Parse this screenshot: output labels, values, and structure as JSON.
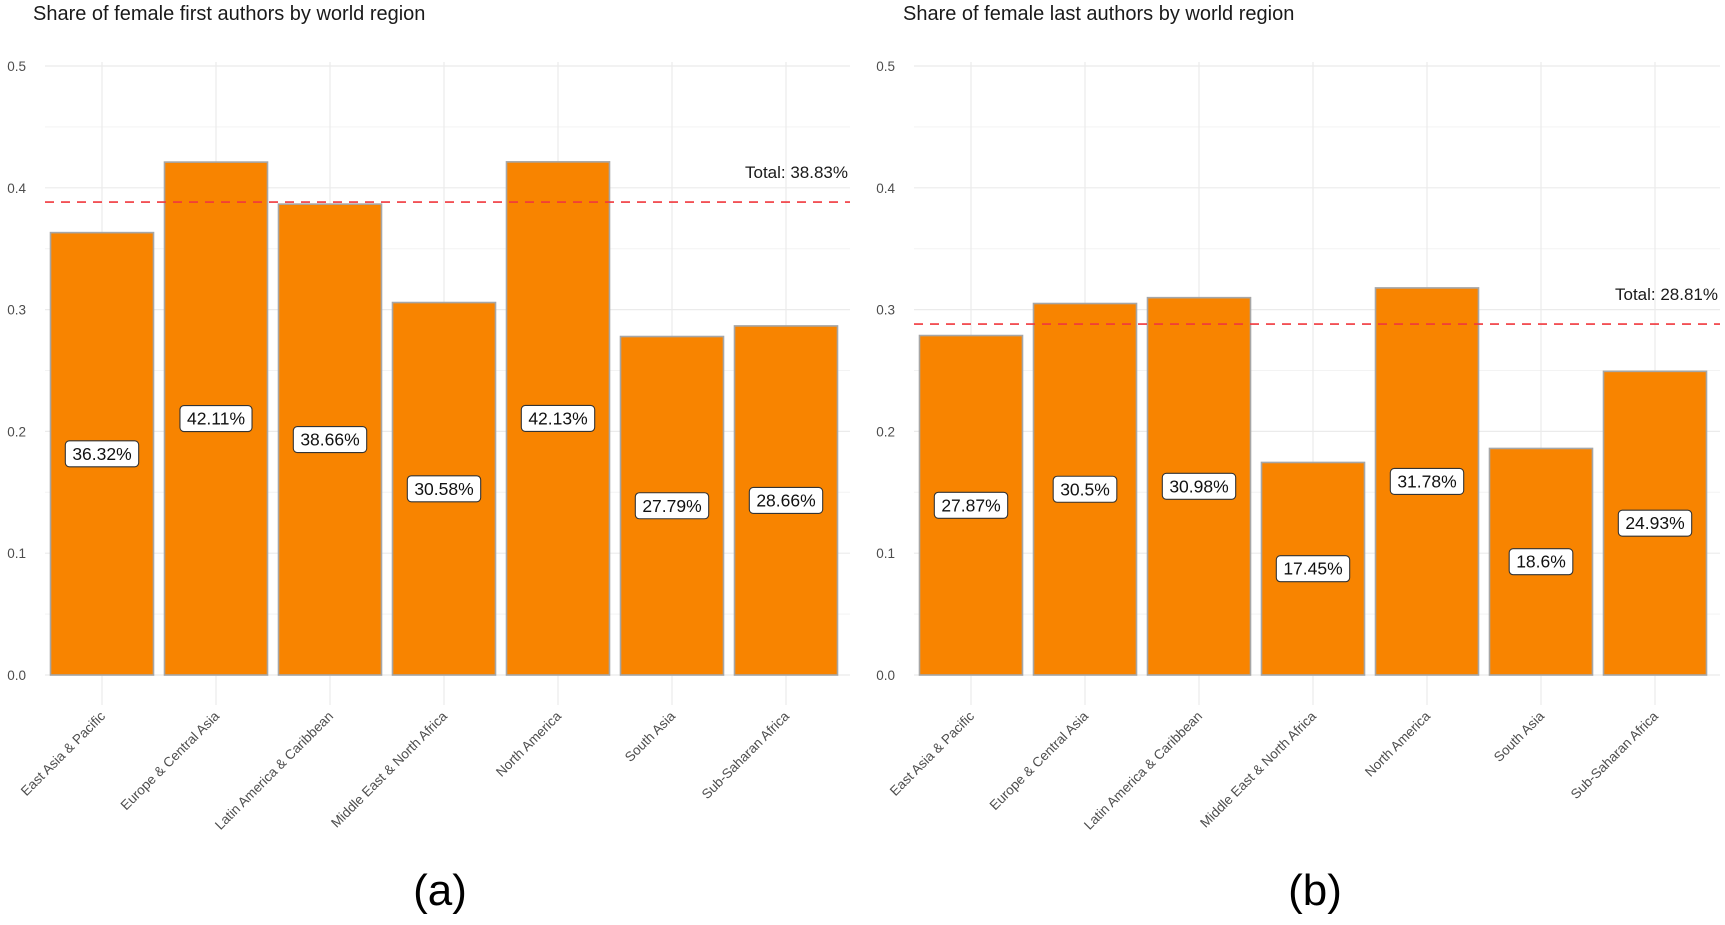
{
  "colors": {
    "bar_fill": "#f88400",
    "bar_border": "#a6a6a6",
    "reference_line": "#f0373d"
  },
  "chart_data": [
    {
      "type": "bar",
      "panel_caption": "(a)",
      "title": "Share of female first authors by world region",
      "xlabel": "",
      "ylabel": "",
      "ylim": [
        0,
        0.5
      ],
      "yticks": [
        "0.0",
        "0.1",
        "0.2",
        "0.3",
        "0.4",
        "0.5"
      ],
      "grid": true,
      "categories": [
        "East Asia & Pacific",
        "Europe & Central Asia",
        "Latin America & Caribbean",
        "Middle East & North Africa",
        "North America",
        "South Asia",
        "Sub-Saharan Africa"
      ],
      "values": [
        0.3632,
        0.4211,
        0.3866,
        0.3058,
        0.4213,
        0.2779,
        0.2866
      ],
      "data_labels": [
        "36.32%",
        "42.11%",
        "38.66%",
        "30.58%",
        "42.13%",
        "27.79%",
        "28.66%"
      ],
      "reference_line": {
        "value": 0.3883,
        "label": "Total: 38.83%",
        "style": "dashed"
      }
    },
    {
      "type": "bar",
      "panel_caption": "(b)",
      "title": "Share of female last authors by world region",
      "xlabel": "",
      "ylabel": "",
      "ylim": [
        0,
        0.5
      ],
      "yticks": [
        "0.0",
        "0.1",
        "0.2",
        "0.3",
        "0.4",
        "0.5"
      ],
      "grid": true,
      "categories": [
        "East Asia & Pacific",
        "Europe & Central Asia",
        "Latin America & Caribbean",
        "Middle East & North Africa",
        "North America",
        "South Asia",
        "Sub-Saharan Africa"
      ],
      "values": [
        0.2787,
        0.305,
        0.3098,
        0.1745,
        0.3178,
        0.186,
        0.2493
      ],
      "data_labels": [
        "27.87%",
        "30.5%",
        "30.98%",
        "17.45%",
        "31.78%",
        "18.6%",
        "24.93%"
      ],
      "reference_line": {
        "value": 0.2881,
        "label": "Total: 28.81%",
        "style": "dashed"
      }
    }
  ]
}
